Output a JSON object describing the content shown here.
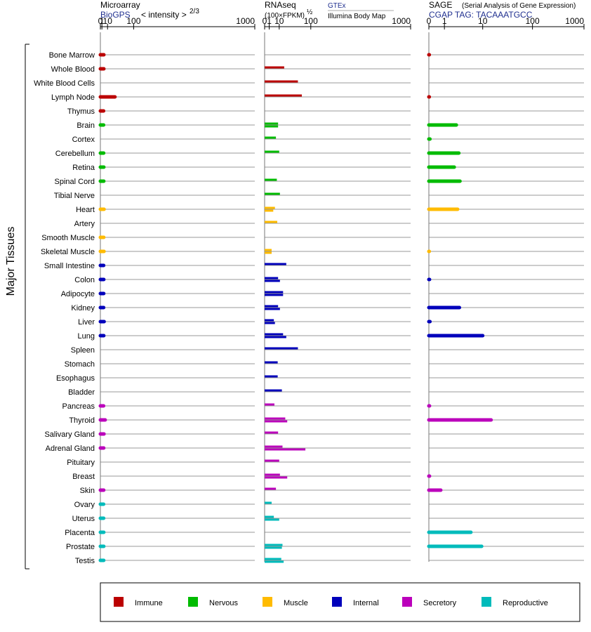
{
  "chart_data": {
    "type": "bar",
    "axis_title": "Major Tissues",
    "tissues": [
      "Bone Marrow",
      "Whole Blood",
      "White Blood Cells",
      "Lymph Node",
      "Thymus",
      "Brain",
      "Cortex",
      "Cerebellum",
      "Retina",
      "Spinal Cord",
      "Tibial Nerve",
      "Heart",
      "Artery",
      "Smooth Muscle",
      "Skeletal Muscle",
      "Small Intestine",
      "Colon",
      "Adipocyte",
      "Kidney",
      "Liver",
      "Lung",
      "Spleen",
      "Stomach",
      "Esophagus",
      "Bladder",
      "Pancreas",
      "Thyroid",
      "Salivary Gland",
      "Adrenal Gland",
      "Pituitary",
      "Breast",
      "Skin",
      "Ovary",
      "Uterus",
      "Placenta",
      "Prostate",
      "Testis"
    ],
    "categories": [
      "Immune",
      "Immune",
      "Immune",
      "Immune",
      "Immune",
      "Nervous",
      "Nervous",
      "Nervous",
      "Nervous",
      "Nervous",
      "Nervous",
      "Muscle",
      "Muscle",
      "Muscle",
      "Muscle",
      "Internal",
      "Internal",
      "Internal",
      "Internal",
      "Internal",
      "Internal",
      "Internal",
      "Internal",
      "Internal",
      "Internal",
      "Secretory",
      "Secretory",
      "Secretory",
      "Secretory",
      "Secretory",
      "Secretory",
      "Secretory",
      "Reproductive",
      "Reproductive",
      "Reproductive",
      "Reproductive",
      "Reproductive"
    ],
    "category_colors": {
      "Immune": "#bb0000",
      "Nervous": "#00bb00",
      "Muscle": "#ffbb00",
      "Internal": "#0000bb",
      "Secretory": "#bb00bb",
      "Reproductive": "#00bbbb"
    },
    "legend": [
      {
        "name": "Immune",
        "color": "#bb0000"
      },
      {
        "name": "Nervous",
        "color": "#00bb00"
      },
      {
        "name": "Muscle",
        "color": "#ffbb00"
      },
      {
        "name": "Internal",
        "color": "#0000bb"
      },
      {
        "name": "Secretory",
        "color": "#bb00bb"
      },
      {
        "name": "Reproductive",
        "color": "#00bbbb"
      }
    ],
    "panels": [
      {
        "id": "microarray",
        "title": "Microarray",
        "subtitle": "BioGPS",
        "axis_label": "< intensity >",
        "axis_exponent": "2/3",
        "scale": "pow_2_3",
        "xlim": [
          0,
          1000
        ],
        "ticks": [
          0,
          1,
          10,
          100,
          1000
        ],
        "series": [
          [
            3.4,
            3.4,
            null,
            29,
            3
          ],
          [
            3,
            null,
            3.1,
            3.4,
            3.3,
            null
          ],
          [
            3.7,
            null,
            3.3,
            3.6
          ],
          [
            3.1,
            3.3,
            3.2,
            3.1,
            3.8,
            3.3,
            null,
            null,
            null,
            null
          ],
          [
            3.0,
            5.5,
            3.6,
            3.2,
            null,
            null,
            3.2
          ],
          [
            3.0,
            3.1,
            3.3,
            3.3,
            3.2
          ]
        ]
      },
      {
        "id": "rnaseq",
        "title": "RNAseq",
        "subtitle": "(100×FPKM)",
        "axis_exponent": "½",
        "source_primary": "GTEx",
        "source_secondary": "Illumina Body Map",
        "scale": "sqrt",
        "xlim": [
          0,
          1000
        ],
        "ticks": [
          0,
          1,
          10,
          100,
          1000
        ],
        "series_a": [
          [
            null,
            18,
            52,
            65,
            null
          ],
          [
            8.5,
            6,
            10,
            null,
            7,
            11
          ],
          [
            5,
            7.5,
            null,
            2.3
          ],
          [
            22,
            8.5,
            16,
            8.5,
            4,
            16,
            52,
            8,
            8,
            14
          ],
          [
            4.5,
            20,
            8.5,
            15,
            10,
            11,
            6
          ],
          [
            2.3,
            4,
            null,
            15,
            13
          ]
        ],
        "series_b": [
          [
            null,
            null,
            null,
            null,
            null
          ],
          [
            8.5,
            null,
            null,
            null,
            null,
            null
          ],
          [
            3.5,
            null,
            null,
            2.3
          ],
          [
            null,
            11,
            16,
            11,
            5,
            22,
            null,
            null,
            null,
            null
          ],
          [
            null,
            24,
            null,
            78,
            null,
            24,
            null
          ],
          [
            null,
            10,
            null,
            14,
            17
          ]
        ]
      },
      {
        "id": "sage",
        "title": "SAGE",
        "title_note": "(Serial Analysis of Gene Expression)",
        "subtitle": "CGAP  TAG: TACAAATGCC",
        "scale": "log1p",
        "xlim": [
          0,
          1000
        ],
        "ticks": [
          0,
          1,
          10,
          100,
          1000
        ],
        "series": [
          [
            0.02,
            null,
            null,
            0.02,
            null
          ],
          [
            2.4,
            0.05,
            2.8,
            2.1,
            3,
            null
          ],
          [
            2.6,
            null,
            null,
            0.02
          ],
          [
            null,
            0.03,
            null,
            2.9,
            0.05,
            10,
            null,
            null,
            null,
            null
          ],
          [
            0.03,
            15,
            null,
            null,
            null,
            0.03,
            0.7
          ],
          [
            null,
            null,
            5.5,
            9.5,
            null
          ]
        ]
      }
    ]
  },
  "tick_labels": [
    "0",
    "1",
    "10",
    "100",
    "1000"
  ],
  "layout_ref": {
    "row_count": 37
  }
}
